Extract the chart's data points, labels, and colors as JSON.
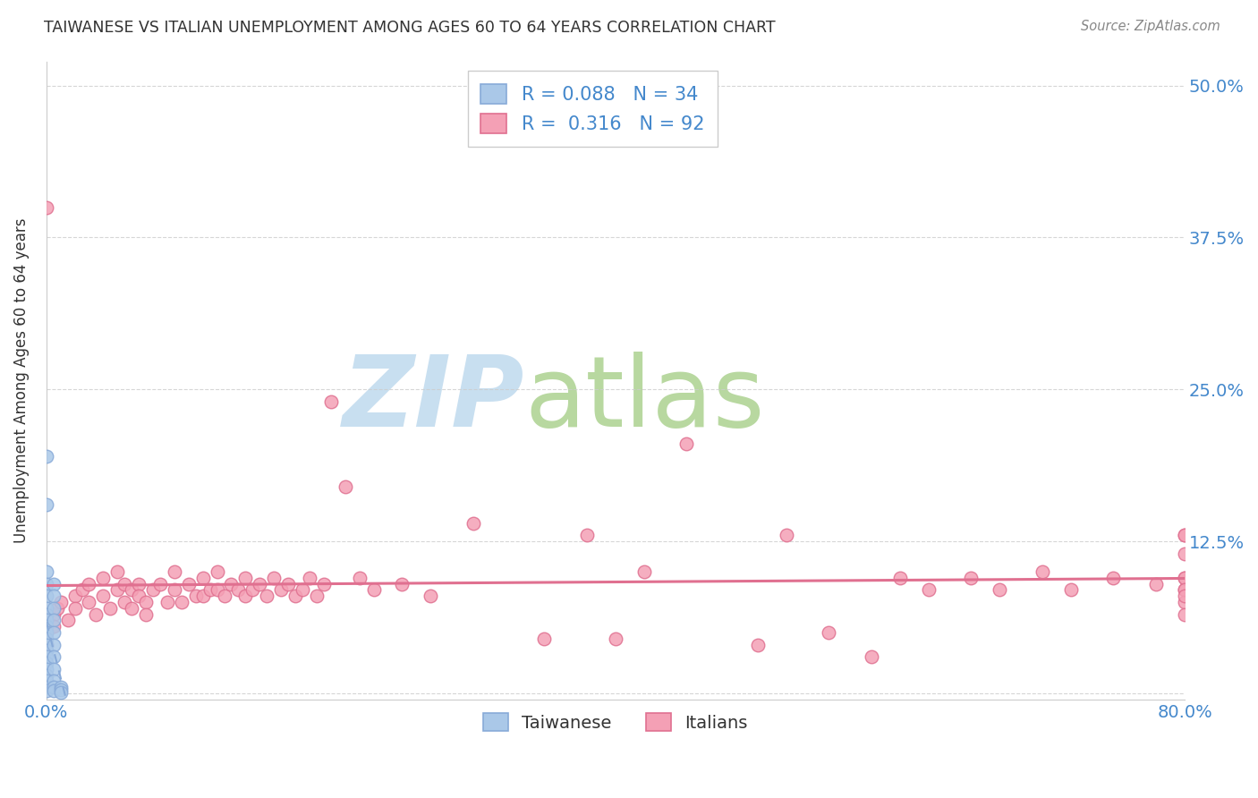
{
  "title": "TAIWANESE VS ITALIAN UNEMPLOYMENT AMONG AGES 60 TO 64 YEARS CORRELATION CHART",
  "source": "Source: ZipAtlas.com",
  "ylabel": "Unemployment Among Ages 60 to 64 years",
  "xlim": [
    0.0,
    0.8
  ],
  "ylim": [
    -0.005,
    0.52
  ],
  "yticks": [
    0.0,
    0.125,
    0.25,
    0.375,
    0.5
  ],
  "xticks": [
    0.0,
    0.2,
    0.4,
    0.6,
    0.8
  ],
  "background_color": "#ffffff",
  "legend_R_taiwanese": "0.088",
  "legend_N_taiwanese": "34",
  "legend_R_italians": "0.316",
  "legend_N_italians": "92",
  "taiwanese_fill": "#aac8e8",
  "taiwanese_edge": "#88aad8",
  "italian_fill": "#f4a0b5",
  "italian_edge": "#e07090",
  "italian_line_color": "#e07090",
  "taiwanese_line_color": "#88aad8",
  "grid_color": "#cccccc",
  "title_color": "#333333",
  "axis_label_color": "#333333",
  "tick_color": "#4488cc",
  "source_color": "#888888",
  "watermark_zip_color": "#c8dff0",
  "watermark_atlas_color": "#b8d8a0",
  "taiwanese_x": [
    0.0,
    0.0,
    0.0,
    0.0,
    0.0,
    0.0,
    0.0,
    0.0,
    0.0,
    0.0,
    0.0,
    0.0,
    0.0,
    0.0,
    0.0,
    0.0,
    0.0,
    0.0,
    0.0,
    0.0,
    0.005,
    0.005,
    0.005,
    0.005,
    0.005,
    0.005,
    0.005,
    0.005,
    0.005,
    0.005,
    0.005,
    0.01,
    0.01,
    0.01
  ],
  "taiwanese_y": [
    0.195,
    0.155,
    0.1,
    0.09,
    0.08,
    0.07,
    0.065,
    0.06,
    0.055,
    0.05,
    0.045,
    0.04,
    0.035,
    0.03,
    0.025,
    0.02,
    0.015,
    0.01,
    0.005,
    0.002,
    0.09,
    0.08,
    0.07,
    0.06,
    0.05,
    0.04,
    0.03,
    0.02,
    0.01,
    0.005,
    0.002,
    0.005,
    0.003,
    0.001
  ],
  "italian_x": [
    0.0,
    0.0,
    0.0,
    0.0,
    0.0,
    0.005,
    0.005,
    0.008,
    0.01,
    0.015,
    0.02,
    0.02,
    0.025,
    0.03,
    0.03,
    0.035,
    0.04,
    0.04,
    0.045,
    0.05,
    0.05,
    0.055,
    0.055,
    0.06,
    0.06,
    0.065,
    0.065,
    0.07,
    0.07,
    0.075,
    0.08,
    0.085,
    0.09,
    0.09,
    0.095,
    0.1,
    0.105,
    0.11,
    0.11,
    0.115,
    0.12,
    0.12,
    0.125,
    0.13,
    0.135,
    0.14,
    0.14,
    0.145,
    0.15,
    0.155,
    0.16,
    0.165,
    0.17,
    0.175,
    0.18,
    0.185,
    0.19,
    0.195,
    0.2,
    0.21,
    0.22,
    0.23,
    0.25,
    0.27,
    0.3,
    0.35,
    0.38,
    0.4,
    0.42,
    0.45,
    0.5,
    0.52,
    0.55,
    0.58,
    0.6,
    0.62,
    0.65,
    0.67,
    0.7,
    0.72,
    0.75,
    0.78,
    0.8,
    0.8,
    0.8,
    0.8,
    0.8,
    0.8,
    0.8,
    0.8,
    0.8,
    0.8
  ],
  "italian_y": [
    0.4,
    0.065,
    0.055,
    0.05,
    0.04,
    0.065,
    0.055,
    0.07,
    0.075,
    0.06,
    0.08,
    0.07,
    0.085,
    0.09,
    0.075,
    0.065,
    0.095,
    0.08,
    0.07,
    0.1,
    0.085,
    0.09,
    0.075,
    0.085,
    0.07,
    0.09,
    0.08,
    0.075,
    0.065,
    0.085,
    0.09,
    0.075,
    0.1,
    0.085,
    0.075,
    0.09,
    0.08,
    0.095,
    0.08,
    0.085,
    0.1,
    0.085,
    0.08,
    0.09,
    0.085,
    0.095,
    0.08,
    0.085,
    0.09,
    0.08,
    0.095,
    0.085,
    0.09,
    0.08,
    0.085,
    0.095,
    0.08,
    0.09,
    0.24,
    0.17,
    0.095,
    0.085,
    0.09,
    0.08,
    0.14,
    0.045,
    0.13,
    0.045,
    0.1,
    0.205,
    0.04,
    0.13,
    0.05,
    0.03,
    0.095,
    0.085,
    0.095,
    0.085,
    0.1,
    0.085,
    0.095,
    0.09,
    0.13,
    0.115,
    0.095,
    0.085,
    0.075,
    0.065,
    0.095,
    0.085,
    0.13,
    0.08
  ]
}
